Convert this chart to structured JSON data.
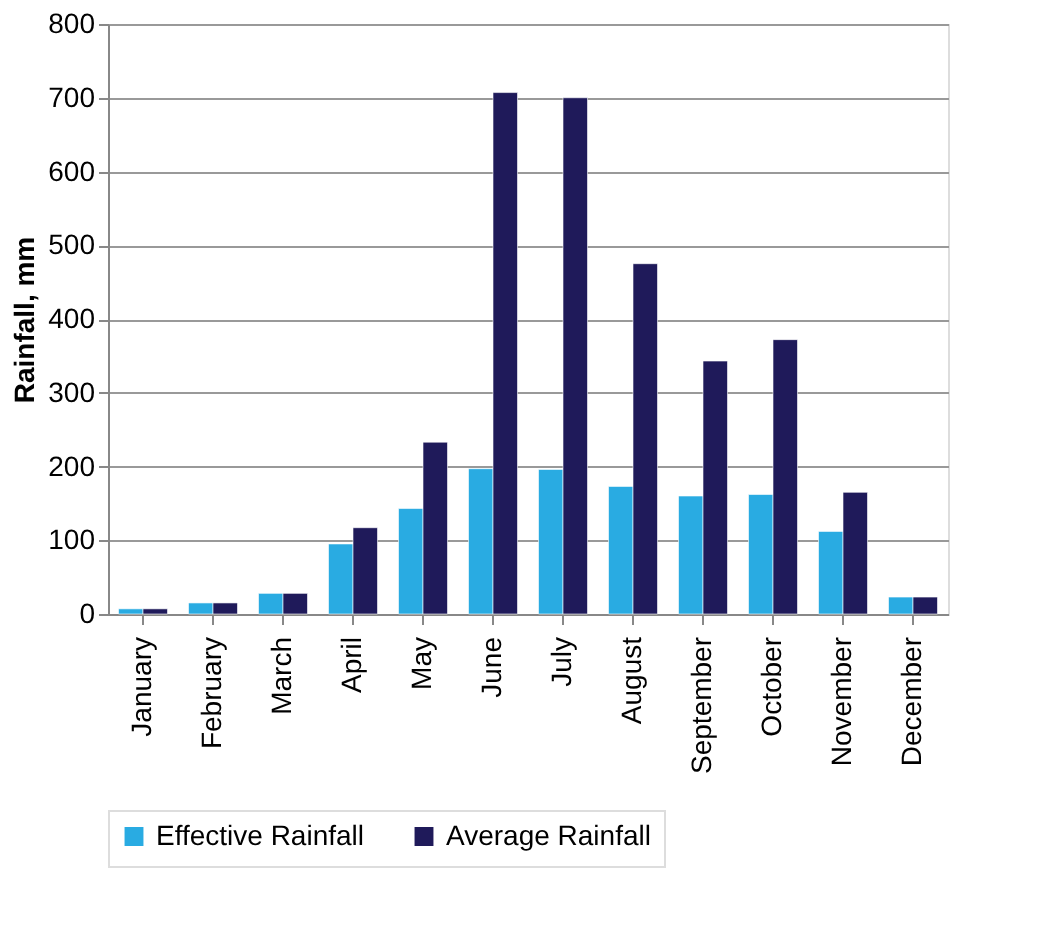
{
  "chart_data": {
    "type": "bar",
    "ylabel": "Rainfall, mm",
    "categories": [
      "January",
      "February",
      "March",
      "April",
      "May",
      "June",
      "July",
      "August",
      "September",
      "October",
      "November",
      "December"
    ],
    "series": [
      {
        "name": "Effective Rainfall",
        "color": "#29abe2",
        "values": [
          7,
          15,
          28,
          95,
          143,
          197,
          196,
          173,
          160,
          162,
          112,
          23
        ]
      },
      {
        "name": "Average Rainfall",
        "color": "#1f1a5a",
        "values": [
          7,
          15,
          28,
          117,
          233,
          707,
          700,
          475,
          343,
          372,
          165,
          23
        ]
      }
    ],
    "ylim": [
      0,
      800
    ],
    "yticks": [
      0,
      100,
      200,
      300,
      400,
      500,
      600,
      700,
      800
    ],
    "grid": "y",
    "legend": "bottom"
  }
}
